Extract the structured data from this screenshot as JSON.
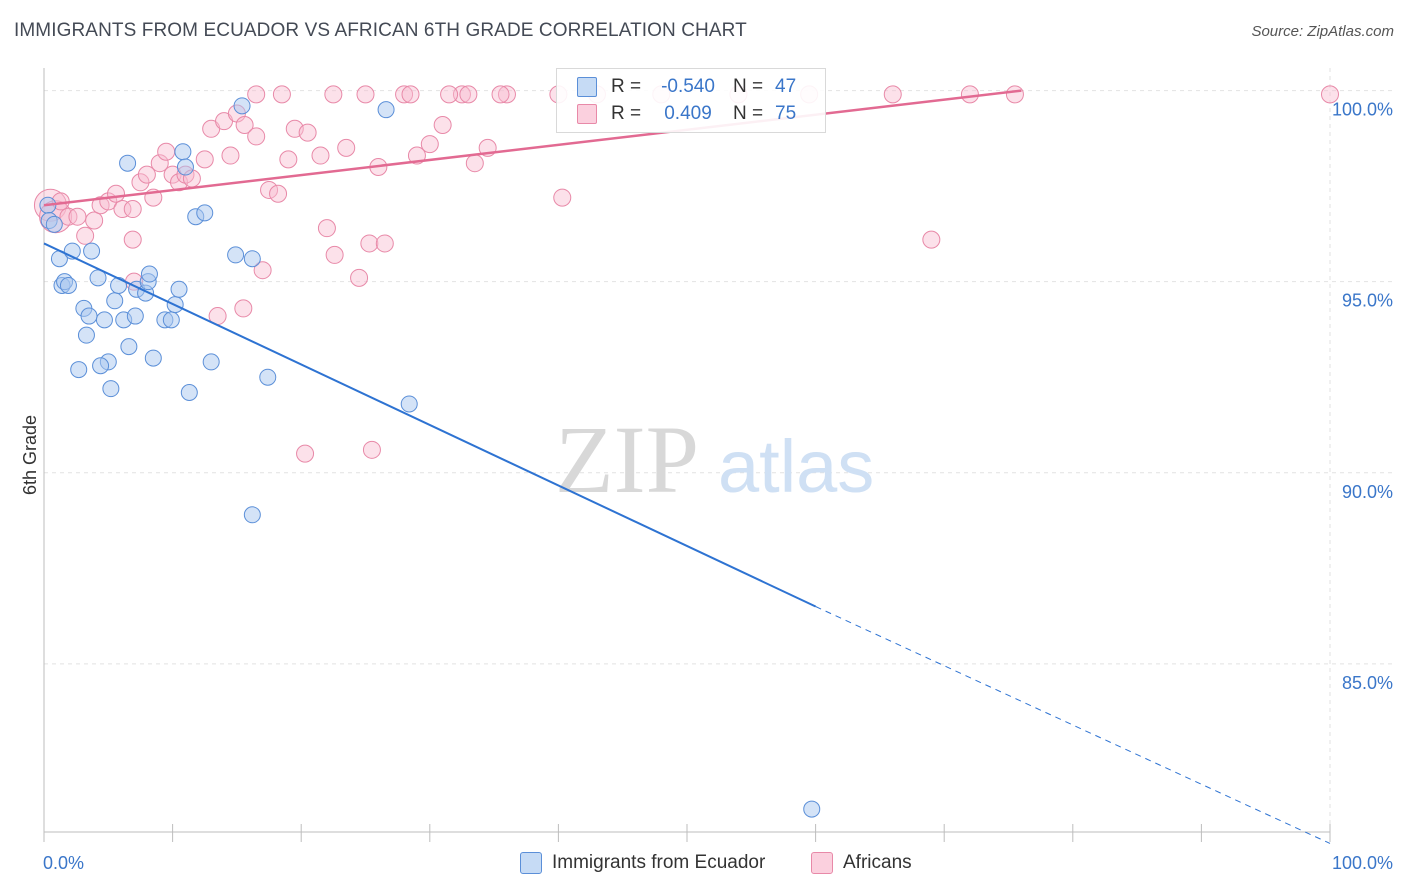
{
  "title": "IMMIGRANTS FROM ECUADOR VS AFRICAN 6TH GRADE CORRELATION CHART",
  "source": "Source: ZipAtlas.com",
  "watermark": {
    "zip": "ZIP",
    "atlas": "atlas"
  },
  "stats": {
    "r_label": "R =",
    "n_label": "N =",
    "series1": {
      "r": "-0.540",
      "n": "47"
    },
    "series2": {
      "r": "0.409",
      "n": "75"
    }
  },
  "colors": {
    "blue_fill": "#aac8f0",
    "blue_stroke": "#5b8fd8",
    "blue_line": "#2e73d2",
    "pink_fill": "#f8bdd0",
    "pink_stroke": "#e889a8",
    "pink_line": "#e26a92",
    "axis_text": "#3a76c9"
  },
  "chart_data": {
    "type": "scatter",
    "title": "IMMIGRANTS FROM ECUADOR VS AFRICAN 6TH GRADE CORRELATION CHART",
    "xlabel": "",
    "ylabel": "6th Grade",
    "xlim": [
      0,
      100
    ],
    "ylim": [
      80.6,
      100.8
    ],
    "x_tick_labels": [
      "0.0%",
      "100.0%"
    ],
    "y_ticks": [
      100,
      95,
      90,
      85
    ],
    "y_tick_labels": [
      "100.0%",
      "95.0%",
      "90.0%",
      "85.0%"
    ],
    "grid": true,
    "legend_position": "bottom",
    "series": [
      {
        "name": "Immigrants from Ecuador",
        "color": "blue",
        "trend": {
          "x0": 0,
          "y0": 96.0,
          "x1": 60,
          "y1": 86.5,
          "dashed_to_x": 100,
          "dashed_to_y": 80.3
        },
        "points": [
          [
            0.3,
            97.0
          ],
          [
            0.4,
            96.6
          ],
          [
            0.8,
            96.5
          ],
          [
            1.2,
            95.6
          ],
          [
            2.2,
            95.8
          ],
          [
            1.4,
            94.9
          ],
          [
            1.6,
            95.0
          ],
          [
            1.9,
            94.9
          ],
          [
            3.7,
            95.8
          ],
          [
            4.2,
            95.1
          ],
          [
            3.1,
            94.3
          ],
          [
            3.5,
            94.1
          ],
          [
            3.3,
            93.6
          ],
          [
            4.7,
            94.0
          ],
          [
            5.5,
            94.5
          ],
          [
            6.2,
            94.0
          ],
          [
            7.1,
            94.1
          ],
          [
            5.8,
            94.9
          ],
          [
            7.2,
            94.8
          ],
          [
            7.9,
            94.7
          ],
          [
            8.1,
            95.0
          ],
          [
            8.2,
            95.2
          ],
          [
            9.4,
            94.0
          ],
          [
            9.9,
            94.0
          ],
          [
            10.2,
            94.4
          ],
          [
            10.5,
            94.8
          ],
          [
            6.6,
            93.3
          ],
          [
            8.5,
            93.0
          ],
          [
            5.0,
            92.9
          ],
          [
            4.4,
            92.8
          ],
          [
            2.7,
            92.7
          ],
          [
            5.2,
            92.2
          ],
          [
            11.3,
            92.1
          ],
          [
            13.0,
            92.9
          ],
          [
            17.4,
            92.5
          ],
          [
            28.4,
            91.8
          ],
          [
            16.2,
            95.6
          ],
          [
            14.9,
            95.7
          ],
          [
            11.8,
            96.7
          ],
          [
            12.5,
            96.8
          ],
          [
            6.5,
            98.1
          ],
          [
            10.8,
            98.4
          ],
          [
            11.0,
            98.0
          ],
          [
            15.4,
            99.6
          ],
          [
            26.6,
            99.5
          ],
          [
            16.2,
            88.9
          ],
          [
            59.7,
            81.2
          ]
        ]
      },
      {
        "name": "Africans",
        "color": "pink",
        "trend": {
          "x0": 0,
          "y0": 97.0,
          "x1": 76,
          "y1": 100.0
        },
        "points": [
          [
            0.5,
            97.0
          ],
          [
            0.9,
            96.7
          ],
          [
            1.3,
            97.1
          ],
          [
            1.9,
            96.7
          ],
          [
            2.6,
            96.7
          ],
          [
            3.2,
            96.2
          ],
          [
            3.9,
            96.6
          ],
          [
            4.4,
            97.0
          ],
          [
            5.0,
            97.1
          ],
          [
            5.6,
            97.3
          ],
          [
            6.1,
            96.9
          ],
          [
            6.9,
            96.9
          ],
          [
            6.9,
            96.1
          ],
          [
            7.5,
            97.6
          ],
          [
            8.0,
            97.8
          ],
          [
            8.5,
            97.2
          ],
          [
            9.0,
            98.1
          ],
          [
            9.5,
            98.4
          ],
          [
            10.0,
            97.8
          ],
          [
            10.5,
            97.6
          ],
          [
            11.0,
            97.8
          ],
          [
            11.5,
            97.7
          ],
          [
            12.5,
            98.2
          ],
          [
            13.0,
            99.0
          ],
          [
            14.0,
            99.2
          ],
          [
            14.5,
            98.3
          ],
          [
            15.0,
            99.4
          ],
          [
            15.6,
            99.1
          ],
          [
            16.5,
            98.8
          ],
          [
            17.5,
            97.4
          ],
          [
            18.2,
            97.3
          ],
          [
            19.0,
            98.2
          ],
          [
            19.5,
            99.0
          ],
          [
            20.5,
            98.9
          ],
          [
            21.5,
            98.3
          ],
          [
            22.0,
            96.4
          ],
          [
            23.5,
            98.5
          ],
          [
            22.6,
            95.7
          ],
          [
            24.5,
            95.1
          ],
          [
            25.3,
            96.0
          ],
          [
            26.0,
            98.0
          ],
          [
            26.5,
            96.0
          ],
          [
            28.0,
            99.9
          ],
          [
            29.0,
            98.3
          ],
          [
            30.0,
            98.6
          ],
          [
            31.0,
            99.1
          ],
          [
            32.5,
            99.9
          ],
          [
            33.5,
            98.1
          ],
          [
            34.5,
            98.5
          ],
          [
            36.0,
            99.9
          ],
          [
            40.0,
            99.9
          ],
          [
            43.0,
            99.9
          ],
          [
            48.0,
            99.9
          ],
          [
            54.0,
            99.9
          ],
          [
            59.5,
            99.9
          ],
          [
            66.0,
            99.9
          ],
          [
            69.0,
            96.1
          ],
          [
            72.0,
            99.9
          ],
          [
            75.5,
            99.9
          ],
          [
            100.0,
            99.9
          ],
          [
            16.5,
            99.9
          ],
          [
            22.5,
            99.9
          ],
          [
            25.0,
            99.9
          ],
          [
            28.5,
            99.9
          ],
          [
            31.5,
            99.9
          ],
          [
            33.0,
            99.9
          ],
          [
            35.5,
            99.9
          ],
          [
            18.5,
            99.9
          ],
          [
            13.5,
            94.1
          ],
          [
            15.5,
            94.3
          ],
          [
            17.0,
            95.3
          ],
          [
            20.3,
            90.5
          ],
          [
            25.5,
            90.6
          ],
          [
            40.3,
            97.2
          ],
          [
            7.0,
            95.0
          ]
        ]
      }
    ]
  }
}
